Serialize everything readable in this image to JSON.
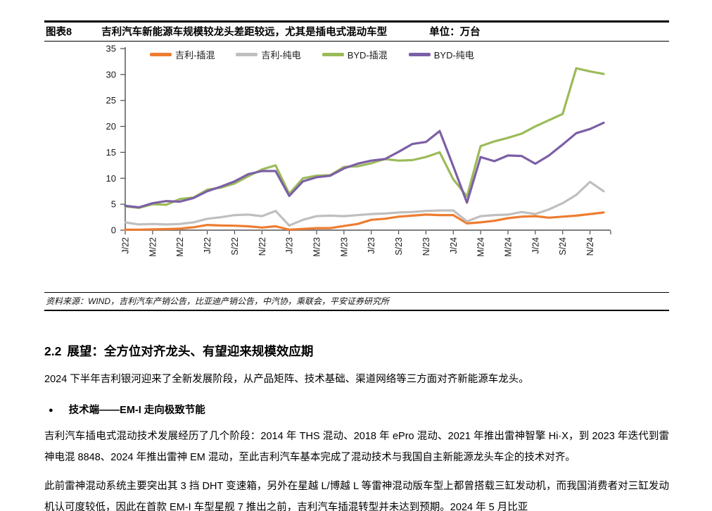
{
  "figure": {
    "label": "图表8",
    "title": "吉利汽车新能源车规模较龙头差距较远，尤其是插电式混动车型",
    "unit": "单位：万台"
  },
  "chart_data": {
    "type": "line",
    "title": "吉利汽车新能源车规模较龙头差距较远，尤其是插电式混动车型",
    "unit": "万台",
    "ylim": [
      0,
      35
    ],
    "y_ticks": [
      0,
      5,
      10,
      15,
      20,
      25,
      30,
      35
    ],
    "grid": false,
    "legend_position": "top",
    "x_tick_labels": [
      "J/22",
      "M/22",
      "M/22",
      "J/22",
      "S/22",
      "N/22",
      "J/23",
      "M/23",
      "M/23",
      "J/23",
      "S/23",
      "N/23",
      "J/24",
      "M/24",
      "M/24",
      "J/24",
      "S/24",
      "N/24"
    ],
    "months": [
      "2022-01",
      "2022-02",
      "2022-03",
      "2022-04",
      "2022-05",
      "2022-06",
      "2022-07",
      "2022-08",
      "2022-09",
      "2022-10",
      "2022-11",
      "2022-12",
      "2023-01",
      "2023-02",
      "2023-03",
      "2023-04",
      "2023-05",
      "2023-06",
      "2023-07",
      "2023-08",
      "2023-09",
      "2023-10",
      "2023-11",
      "2023-12",
      "2024-01",
      "2024-02",
      "2024-03",
      "2024-04",
      "2024-05",
      "2024-06",
      "2024-07",
      "2024-08",
      "2024-09",
      "2024-10",
      "2024-11",
      "2024-12"
    ],
    "series": [
      {
        "name": "吉利-插混",
        "color": "#ED7D31",
        "values": [
          0.1,
          0.1,
          0.15,
          0.2,
          0.3,
          0.55,
          1.0,
          0.9,
          0.85,
          0.75,
          0.5,
          0.75,
          0.1,
          0.25,
          0.4,
          0.4,
          0.8,
          1.2,
          2.0,
          2.2,
          2.6,
          2.8,
          3.0,
          2.9,
          2.9,
          1.3,
          1.5,
          1.8,
          2.3,
          2.6,
          2.7,
          2.4,
          2.6,
          2.8,
          3.1,
          3.4
        ]
      },
      {
        "name": "吉利-纯电",
        "color": "#BFBFBF",
        "values": [
          1.5,
          1.1,
          1.2,
          1.1,
          1.2,
          1.5,
          2.2,
          2.5,
          2.9,
          3.0,
          2.7,
          3.7,
          0.9,
          2.0,
          2.7,
          2.8,
          2.7,
          2.9,
          3.1,
          3.2,
          3.4,
          3.5,
          3.7,
          3.8,
          3.8,
          1.7,
          2.7,
          2.9,
          3.0,
          3.5,
          3.1,
          4.0,
          5.2,
          6.8,
          9.3,
          7.5
        ]
      },
      {
        "name": "BYD-插混",
        "color": "#9BBB59",
        "values": [
          4.6,
          4.3,
          5.0,
          4.9,
          6.0,
          6.3,
          7.8,
          8.2,
          9.0,
          10.4,
          11.7,
          12.5,
          7.0,
          10.0,
          10.5,
          10.6,
          12.2,
          12.3,
          12.9,
          13.7,
          13.4,
          13.5,
          14.1,
          15.0,
          9.8,
          6.5,
          16.2,
          17.1,
          17.8,
          18.6,
          20.0,
          21.2,
          22.4,
          31.2,
          30.6,
          30.1
        ]
      },
      {
        "name": "BYD-纯电",
        "color": "#7C5FA6",
        "values": [
          4.7,
          4.4,
          5.2,
          5.6,
          5.5,
          6.2,
          7.5,
          8.4,
          9.4,
          10.8,
          11.4,
          11.4,
          6.6,
          9.4,
          10.2,
          10.5,
          11.9,
          12.8,
          13.4,
          13.7,
          15.1,
          16.6,
          17.0,
          19.1,
          12.3,
          5.3,
          14.1,
          13.3,
          14.4,
          14.3,
          12.8,
          14.4,
          16.5,
          18.7,
          19.5,
          20.7
        ]
      }
    ]
  },
  "source": "资料来源：WIND，吉利汽车产销公告，比亚迪产销公告，中汽协，乘联会，平安证券研究所",
  "section": {
    "heading_number": "2.2",
    "heading": "展望：全方位对齐龙头、有望迎来规模效应期",
    "para1": "2024 下半年吉利银河迎来了全新发展阶段，从产品矩阵、技术基础、渠道网络等三方面对齐新能源车龙头。",
    "bullet_marker": "●",
    "bullet_text": "技术端——EM-I 走向极致节能",
    "para2": "吉利汽车插电式混动技术发展经历了几个阶段：2014 年 THS 混动、2018 年 ePro 混动、2021 年推出雷神智擎 Hi·X，到 2023 年迭代到雷神电混 8848、2024 年推出雷神 EM 混动，至此吉利汽车基本完成了混动技术与我国自主新能源龙头车企的技术对齐。",
    "para3": "此前雷神混动系统主要突出其 3 挡 DHT 变速箱，另外在星越 L/博越 L 等雷神混动版车型上都曾搭载三缸发动机，而我国消费者对三缸发动机认可度较低，因此在首款 EM-I 车型星舰 7 推出之前，吉利汽车插混转型并未达到预期。2024 年 5 月比亚"
  }
}
